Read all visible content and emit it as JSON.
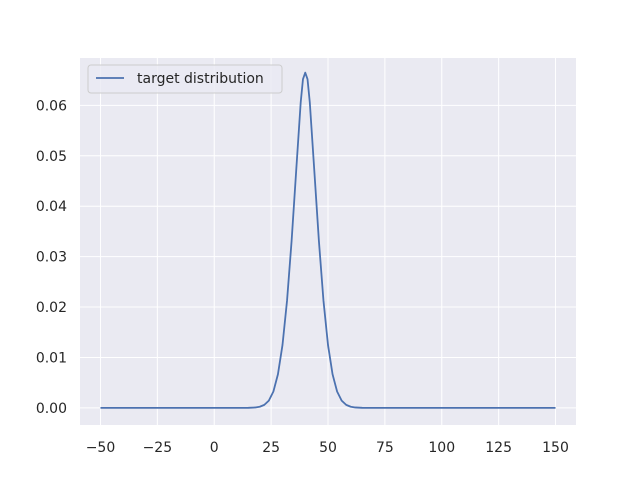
{
  "chart_data": {
    "type": "line",
    "title": "",
    "xlabel": "",
    "ylabel": "",
    "xlim": [
      -59,
      159
    ],
    "ylim": [
      -0.0034,
      0.0694
    ],
    "xticks": [
      -50,
      -25,
      0,
      25,
      50,
      75,
      100,
      125,
      150
    ],
    "xtick_labels": [
      "−50",
      "−25",
      "0",
      "25",
      "50",
      "75",
      "100",
      "125",
      "150"
    ],
    "yticks": [
      0.0,
      0.01,
      0.02,
      0.03,
      0.04,
      0.05,
      0.06
    ],
    "ytick_labels": [
      "0.00",
      "0.01",
      "0.02",
      "0.03",
      "0.04",
      "0.05",
      "0.06"
    ],
    "grid": true,
    "legend_position": "top-left",
    "background_color": "#eaeaf2",
    "grid_color": "#ffffff",
    "series": [
      {
        "name": "target distribution",
        "color": "#4c72b0",
        "x": [
          -50,
          -25,
          0,
          10,
          15,
          18,
          20,
          22,
          24,
          26,
          28,
          30,
          32,
          34,
          36,
          38,
          39,
          40,
          41,
          42,
          44,
          46,
          48,
          50,
          52,
          54,
          56,
          58,
          60,
          62,
          65,
          70,
          80,
          100,
          125,
          150
        ],
        "y": [
          0.0,
          0.0,
          0.0,
          0.0,
          1e-05,
          8e-05,
          0.00022,
          0.00059,
          0.00144,
          0.00324,
          0.00666,
          0.01248,
          0.0213,
          0.03312,
          0.04693,
          0.06058,
          0.0652,
          0.0665,
          0.0652,
          0.06058,
          0.04693,
          0.03312,
          0.0213,
          0.01248,
          0.00666,
          0.00324,
          0.00144,
          0.00059,
          0.00022,
          8e-05,
          1e-05,
          0.0,
          0.0,
          0.0,
          0.0,
          0.0
        ]
      }
    ]
  }
}
